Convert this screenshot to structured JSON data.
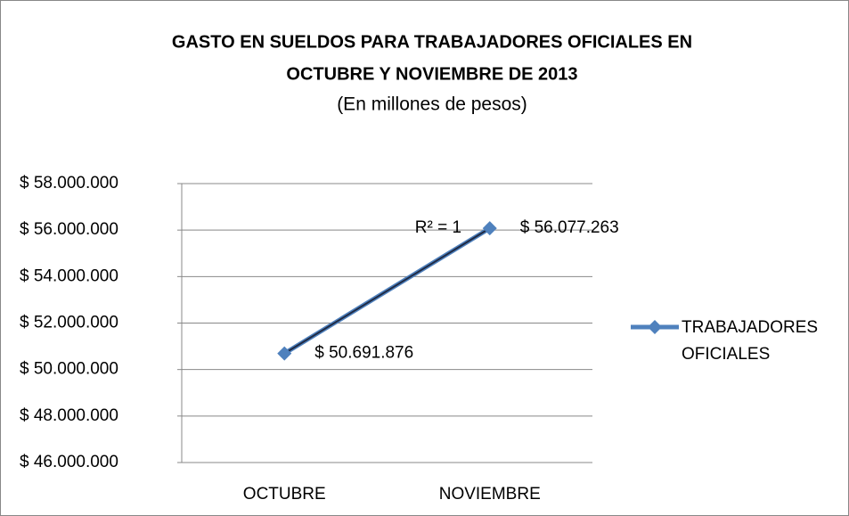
{
  "chart_data": {
    "type": "line",
    "title": [
      "GASTO EN SUELDOS PARA TRABAJADORES OFICIALES EN",
      "OCTUBRE Y NOVIEMBRE DE 2013"
    ],
    "subtitle": "(En millones de pesos)",
    "categories": [
      "OCTUBRE",
      "NOVIEMBRE"
    ],
    "series": [
      {
        "name": "TRABAJADORES OFICIALES",
        "color": "#4f81bd",
        "values": [
          50691876,
          56077263
        ],
        "value_labels": [
          "$ 50.691.876",
          "$ 56.077.263"
        ]
      }
    ],
    "trendline": {
      "color": "#1f2a44",
      "annotation": "R² = 1"
    },
    "ylim": [
      46000000,
      58000000
    ],
    "yticks": [
      {
        "value": 46000000,
        "label": "$ 46.000.000"
      },
      {
        "value": 48000000,
        "label": "$ 48.000.000"
      },
      {
        "value": 50000000,
        "label": "$ 50.000.000"
      },
      {
        "value": 52000000,
        "label": "$ 52.000.000"
      },
      {
        "value": 54000000,
        "label": "$ 54.000.000"
      },
      {
        "value": 56000000,
        "label": "$ 56.000.000"
      },
      {
        "value": 58000000,
        "label": "$ 58.000.000"
      }
    ],
    "grid": true,
    "legend": "right"
  }
}
